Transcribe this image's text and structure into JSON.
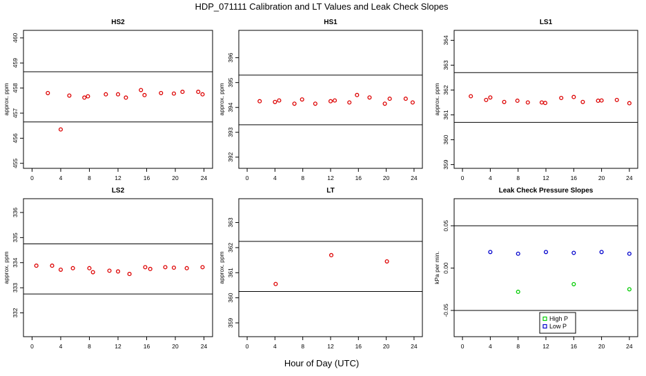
{
  "figure": {
    "title": "HDP_071111  Calibration and LT Values and Leak Check Slopes",
    "xlabel": "Hour of Day (UTC)"
  },
  "chart_data": [
    {
      "type": "scatter",
      "title": "HS2",
      "ylabel": "approx. ppm",
      "xlim": [
        -1.2,
        25.2
      ],
      "ylim": [
        454.8,
        460.3
      ],
      "xticks": [
        "0",
        "4",
        "8",
        "12",
        "16",
        "20",
        "24"
      ],
      "yticks": [
        "455",
        "456",
        "457",
        "458",
        "459",
        "460"
      ],
      "hlines": [
        458.65,
        456.65
      ],
      "series": [
        {
          "color": "#dd0000",
          "x": [
            2.2,
            4.0,
            5.2,
            7.3,
            7.8,
            10.3,
            12.0,
            13.1,
            15.2,
            15.7,
            18.0,
            19.8,
            21.0,
            23.2,
            23.8
          ],
          "y": [
            457.8,
            456.35,
            457.7,
            457.62,
            457.67,
            457.75,
            457.75,
            457.62,
            457.92,
            457.72,
            457.8,
            457.78,
            457.85,
            457.85,
            457.75
          ]
        }
      ]
    },
    {
      "type": "scatter",
      "title": "HS1",
      "ylabel": "approx. ppm",
      "xlim": [
        -1.2,
        25.2
      ],
      "ylim": [
        391.55,
        397.1
      ],
      "xticks": [
        "0",
        "4",
        "8",
        "12",
        "16",
        "20",
        "24"
      ],
      "yticks": [
        "392",
        "393",
        "394",
        "395",
        "396"
      ],
      "hlines": [
        395.3,
        393.3
      ],
      "series": [
        {
          "color": "#dd0000",
          "x": [
            1.8,
            4.0,
            4.6,
            6.8,
            7.9,
            9.8,
            12.0,
            12.6,
            14.7,
            15.8,
            17.6,
            19.8,
            20.5,
            22.8,
            23.8
          ],
          "y": [
            394.25,
            394.22,
            394.28,
            394.15,
            394.32,
            394.15,
            394.25,
            394.28,
            394.2,
            394.5,
            394.4,
            394.15,
            394.35,
            394.35,
            394.2
          ]
        }
      ]
    },
    {
      "type": "scatter",
      "title": "LS1",
      "ylabel": "approx. ppm",
      "xlim": [
        -1.2,
        25.2
      ],
      "ylim": [
        358.85,
        364.4
      ],
      "xticks": [
        "0",
        "4",
        "8",
        "12",
        "16",
        "20",
        "24"
      ],
      "yticks": [
        "359",
        "360",
        "361",
        "362",
        "363",
        "364"
      ],
      "hlines": [
        362.7,
        360.7
      ],
      "series": [
        {
          "color": "#dd0000",
          "x": [
            1.2,
            3.4,
            4.0,
            6.0,
            7.9,
            9.4,
            11.4,
            11.9,
            14.2,
            16.0,
            17.3,
            19.5,
            20.0,
            22.2,
            24.0
          ],
          "y": [
            361.75,
            361.6,
            361.7,
            361.52,
            361.57,
            361.5,
            361.5,
            361.48,
            361.68,
            361.72,
            361.52,
            361.57,
            361.58,
            361.6,
            361.47
          ]
        }
      ]
    },
    {
      "type": "scatter",
      "title": "LS2",
      "ylabel": "approx. ppm",
      "xlim": [
        -1.2,
        25.2
      ],
      "ylim": [
        331.05,
        336.55
      ],
      "xticks": [
        "0",
        "4",
        "8",
        "12",
        "16",
        "20",
        "24"
      ],
      "yticks": [
        "332",
        "333",
        "334",
        "335",
        "336"
      ],
      "hlines": [
        334.75,
        332.75
      ],
      "series": [
        {
          "color": "#dd0000",
          "x": [
            0.6,
            2.8,
            4.0,
            5.7,
            8.0,
            8.5,
            10.8,
            12.0,
            13.6,
            15.8,
            16.5,
            18.6,
            19.8,
            21.6,
            23.8
          ],
          "y": [
            333.88,
            333.88,
            333.72,
            333.78,
            333.78,
            333.62,
            333.68,
            333.65,
            333.55,
            333.82,
            333.75,
            333.82,
            333.8,
            333.78,
            333.82
          ]
        }
      ]
    },
    {
      "type": "scatter",
      "title": "LT",
      "ylabel": "approx. ppm",
      "xlim": [
        -1.2,
        25.2
      ],
      "ylim": [
        358.45,
        363.95
      ],
      "xticks": [
        "0",
        "4",
        "8",
        "12",
        "16",
        "20",
        "24"
      ],
      "yticks": [
        "359",
        "360",
        "361",
        "362",
        "363"
      ],
      "hlines": [
        362.25,
        360.25
      ],
      "series": [
        {
          "color": "#dd0000",
          "x": [
            4.1,
            12.1,
            20.1
          ],
          "y": [
            360.55,
            361.7,
            361.45
          ]
        }
      ]
    },
    {
      "type": "scatter",
      "title": "Leak Check Pressure Slopes",
      "ylabel": "kPa per min.",
      "xlim": [
        -1.2,
        25.2
      ],
      "ylim": [
        -0.081,
        0.082
      ],
      "xticks": [
        "0",
        "4",
        "8",
        "12",
        "16",
        "20",
        "24"
      ],
      "yticks": [
        "-0.05",
        "0.00",
        "0.05"
      ],
      "hlines": [
        0.05,
        -0.05
      ],
      "legend": {
        "position": "bottom-right",
        "entries": [
          "High P",
          "Low P"
        ]
      },
      "series": [
        {
          "name": "High P",
          "color": "#00cc00",
          "x": [
            8.0,
            16.0,
            24.0
          ],
          "y": [
            -0.028,
            -0.019,
            -0.025
          ]
        },
        {
          "name": "Low P",
          "color": "#0000cc",
          "x": [
            4.0,
            8.0,
            12.0,
            16.0,
            20.0,
            24.0
          ],
          "y": [
            0.019,
            0.017,
            0.019,
            0.018,
            0.019,
            0.017
          ]
        }
      ]
    }
  ]
}
